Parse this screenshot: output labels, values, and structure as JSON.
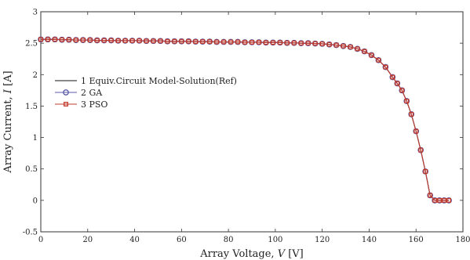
{
  "chart_data": {
    "type": "line",
    "title": "",
    "xlabel_prefix": "Array Voltage, ",
    "xlabel_var": "V",
    "xlabel_unit": " [V]",
    "ylabel_prefix": "Array Current, ",
    "ylabel_var": "I",
    "ylabel_unit": " [A]",
    "xlim": [
      0,
      180
    ],
    "ylim": [
      -0.5,
      3
    ],
    "xticks": [
      0,
      20,
      40,
      60,
      80,
      100,
      120,
      140,
      160,
      180
    ],
    "yticks": [
      -0.5,
      0,
      0.5,
      1,
      1.5,
      2,
      2.5,
      3
    ],
    "grid": false,
    "legend_position": "left",
    "x": [
      0,
      3,
      6,
      9,
      12,
      15,
      18,
      21,
      24,
      27,
      30,
      33,
      36,
      39,
      42,
      45,
      48,
      51,
      54,
      57,
      60,
      63,
      66,
      69,
      72,
      75,
      78,
      81,
      84,
      87,
      90,
      93,
      96,
      99,
      102,
      105,
      108,
      111,
      114,
      117,
      120,
      123,
      126,
      129,
      132,
      135,
      138,
      141,
      144,
      147,
      150,
      152,
      154,
      156,
      158,
      160,
      162,
      164,
      166,
      168,
      170,
      172,
      174
    ],
    "series": [
      {
        "name": "1 Equiv.Circuit Model-Solution(Ref)",
        "color": "#111111",
        "marker": "none",
        "y": [
          2.56,
          2.56,
          2.56,
          2.555,
          2.555,
          2.55,
          2.55,
          2.55,
          2.545,
          2.545,
          2.545,
          2.54,
          2.54,
          2.54,
          2.54,
          2.535,
          2.535,
          2.535,
          2.53,
          2.53,
          2.53,
          2.53,
          2.525,
          2.525,
          2.525,
          2.52,
          2.52,
          2.52,
          2.52,
          2.515,
          2.515,
          2.515,
          2.51,
          2.51,
          2.51,
          2.505,
          2.505,
          2.5,
          2.5,
          2.495,
          2.49,
          2.48,
          2.47,
          2.455,
          2.44,
          2.41,
          2.37,
          2.31,
          2.23,
          2.12,
          1.96,
          1.86,
          1.75,
          1.58,
          1.37,
          1.1,
          0.8,
          0.46,
          0.08,
          0.0,
          0.0,
          0.0,
          0.0
        ]
      },
      {
        "name": "2 GA",
        "color": "#5a5aa8",
        "marker": "circle",
        "y": [
          2.56,
          2.56,
          2.56,
          2.555,
          2.555,
          2.55,
          2.55,
          2.55,
          2.545,
          2.545,
          2.545,
          2.54,
          2.54,
          2.54,
          2.54,
          2.535,
          2.535,
          2.535,
          2.53,
          2.53,
          2.53,
          2.53,
          2.525,
          2.525,
          2.525,
          2.52,
          2.52,
          2.52,
          2.52,
          2.515,
          2.515,
          2.515,
          2.51,
          2.51,
          2.51,
          2.505,
          2.505,
          2.5,
          2.5,
          2.495,
          2.49,
          2.48,
          2.47,
          2.455,
          2.44,
          2.41,
          2.37,
          2.31,
          2.23,
          2.12,
          1.96,
          1.86,
          1.75,
          1.58,
          1.37,
          1.1,
          0.8,
          0.46,
          0.08,
          0.0,
          0.0,
          0.0,
          0.0
        ]
      },
      {
        "name": "3 PSO",
        "color": "#c0392b",
        "marker": "square",
        "y": [
          2.56,
          2.56,
          2.56,
          2.555,
          2.555,
          2.55,
          2.55,
          2.55,
          2.545,
          2.545,
          2.545,
          2.54,
          2.54,
          2.54,
          2.54,
          2.535,
          2.535,
          2.535,
          2.53,
          2.53,
          2.53,
          2.53,
          2.525,
          2.525,
          2.525,
          2.52,
          2.52,
          2.52,
          2.52,
          2.515,
          2.515,
          2.515,
          2.51,
          2.51,
          2.51,
          2.505,
          2.505,
          2.5,
          2.5,
          2.495,
          2.49,
          2.48,
          2.47,
          2.455,
          2.44,
          2.41,
          2.37,
          2.31,
          2.23,
          2.12,
          1.96,
          1.86,
          1.75,
          1.58,
          1.37,
          1.1,
          0.8,
          0.46,
          0.08,
          0.0,
          0.0,
          0.0,
          0.0
        ]
      }
    ]
  }
}
